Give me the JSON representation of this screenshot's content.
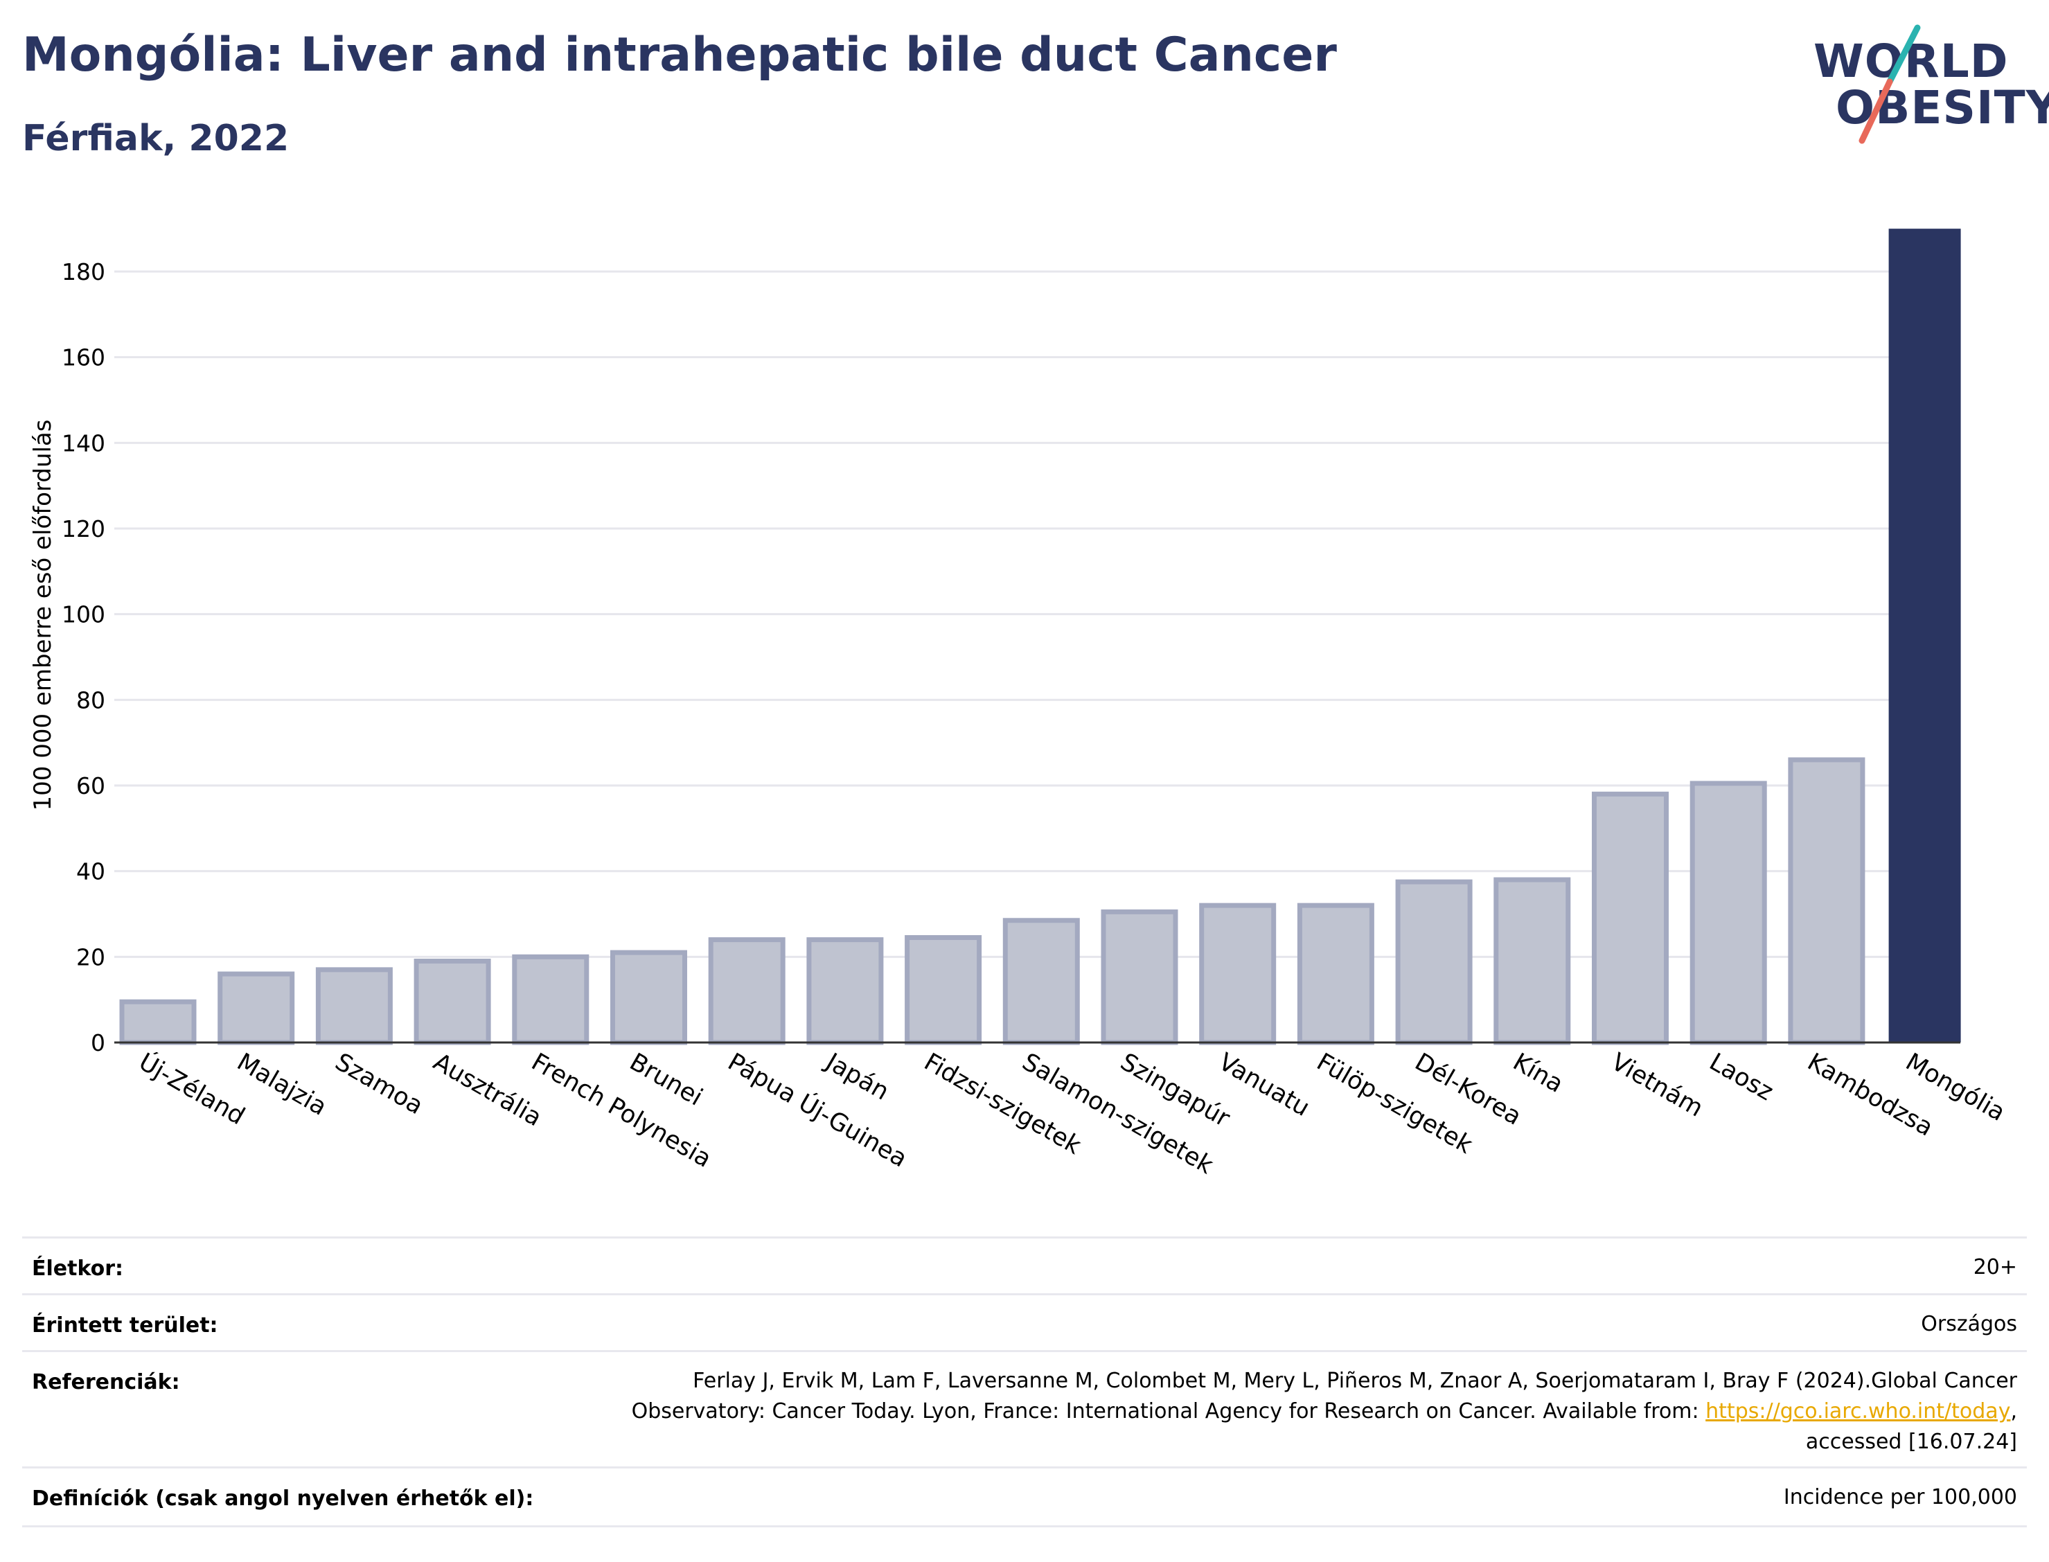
{
  "header": {
    "title": "Mongólia: Liver and intrahepatic bile duct Cancer",
    "subtitle": "Férfiak, 2022"
  },
  "logo": {
    "line1": "WORLD",
    "line2": "OBESITY",
    "slash_colors": [
      "#2ab3b0",
      "#e8695a"
    ]
  },
  "colors": {
    "highlight_bar": "#2a3561",
    "other_bar_fill": "#bfc3d0",
    "other_bar_stroke": "#a3a9c0",
    "axis_text": "#000000",
    "grid": "#e6e6ec"
  },
  "chart_data": {
    "type": "bar",
    "ylabel": "100 000 emberre eső előfordulás",
    "xlabel": "",
    "ylim": [
      0,
      190
    ],
    "yticks": [
      0,
      20,
      40,
      60,
      80,
      100,
      120,
      140,
      160,
      180
    ],
    "grid": true,
    "categories": [
      "Új-Zéland",
      "Malajzia",
      "Szamoa",
      "Ausztrália",
      "French Polynesia",
      "Brunei",
      "Pápua Új-Guinea",
      "Japán",
      "Fidzsi-szigetek",
      "Salamon-szigetek",
      "Szingapúr",
      "Vanuatu",
      "Fülöp-szigetek",
      "Dél-Korea",
      "Kína",
      "Vietnám",
      "Laosz",
      "Kambodzsa",
      "Mongólia"
    ],
    "values": [
      9.5,
      16,
      17,
      19,
      20,
      21,
      24,
      24,
      24.5,
      28.5,
      30.5,
      32,
      32,
      37.5,
      38,
      58,
      60.5,
      66,
      190
    ],
    "highlight": "Mongólia"
  },
  "info": {
    "age_label": "Életkor:",
    "age_value": "20+",
    "area_label": "Érintett terület:",
    "area_value": "Országos",
    "ref_label": "Referenciák:",
    "ref_line1": "Ferlay J, Ervik M, Lam F, Laversanne M, Colombet M, Mery L, Piñeros M, Znaor A, Soerjomataram I, Bray F (2024).Global Cancer",
    "ref_line2_pre": "Observatory: Cancer Today. Lyon, France: International Agency for Research on Cancer. Available from: ",
    "ref_link": "https://gco.iarc.who.int/today",
    "ref_line2_post": ",",
    "ref_line3": "accessed [16.07.24]",
    "def_label": "Definíciók (csak angol nyelven érhetők el):",
    "def_value": "Incidence per 100,000"
  }
}
